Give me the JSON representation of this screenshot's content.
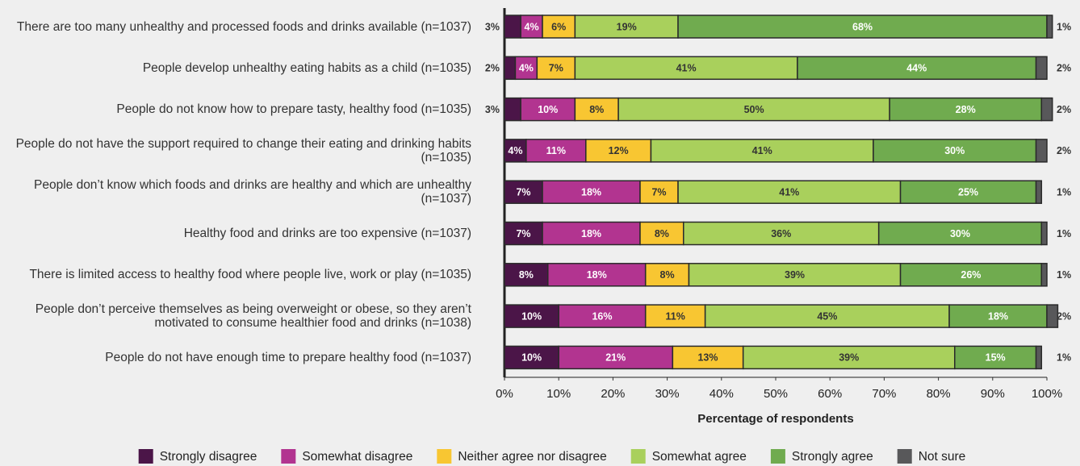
{
  "chart_data": {
    "type": "stacked-bar-horizontal",
    "x_label": "Percentage of respondents",
    "categories": [
      "There are too many unhealthy and processed foods and drinks available (n=1037)",
      "People develop unhealthy eating habits as a child (n=1035)",
      "People do not know how to prepare tasty, healthy food (n=1035)",
      "People do not have the support required to change their eating and drinking habits (n=1035)",
      "People don’t know which foods and drinks are healthy and which are unhealthy (n=1037)",
      "Healthy food and drinks are too expensive (n=1037)",
      "There is limited access to healthy food where people live, work or play (n=1035)",
      "People don’t perceive themselves as being overweight or obese, so they aren’t motivated to consume healthier food and drinks (n=1038)",
      "People do not have enough time to prepare healthy food (n=1037)"
    ],
    "series": [
      {
        "name": "Strongly disagree",
        "color": "#4b1548",
        "values": [
          3,
          2,
          3,
          4,
          7,
          7,
          8,
          10,
          10
        ],
        "value_labels": [
          "3%",
          "2%",
          "3%",
          "4%",
          "7%",
          "7%",
          "8%",
          "10%",
          "10%"
        ]
      },
      {
        "name": "Somewhat disagree",
        "color": "#b23490",
        "values": [
          4,
          4,
          10,
          11,
          18,
          18,
          18,
          16,
          21
        ],
        "value_labels": [
          "4%",
          "4%",
          "10%",
          "11%",
          "18%",
          "18%",
          "18%",
          "16%",
          "21%"
        ]
      },
      {
        "name": "Neither agree nor disagree",
        "color": "#f8c632",
        "values": [
          6,
          7,
          8,
          12,
          7,
          8,
          8,
          11,
          13
        ],
        "value_labels": [
          "6%",
          "7%",
          "8%",
          "12%",
          "7%",
          "8%",
          "8%",
          "11%",
          "13%"
        ]
      },
      {
        "name": "Somewhat agree",
        "color": "#a9d05c",
        "values": [
          19,
          41,
          50,
          41,
          41,
          36,
          39,
          45,
          39
        ],
        "value_labels": [
          "19%",
          "41%",
          "50%",
          "41%",
          "41%",
          "36%",
          "39%",
          "45%",
          "39%"
        ]
      },
      {
        "name": "Strongly agree",
        "color": "#70ab4f",
        "values": [
          68,
          44,
          28,
          30,
          25,
          30,
          26,
          18,
          15
        ],
        "value_labels": [
          "68%",
          "44%",
          "28%",
          "30%",
          "25%",
          "30%",
          "26%",
          "18%",
          "15%"
        ]
      },
      {
        "name": "Not sure",
        "color": "#58585a",
        "values": [
          1,
          2,
          2,
          2,
          1,
          1,
          1,
          2,
          1
        ],
        "value_labels": [
          "1%",
          "2%",
          "2%",
          "2%",
          "1%",
          "1%",
          "1%",
          "2%",
          "1%"
        ]
      }
    ],
    "xlim": [
      0,
      100
    ],
    "xticks": [
      {
        "value": 0,
        "label": "0%"
      },
      {
        "value": 10,
        "label": "10%"
      },
      {
        "value": 20,
        "label": "20%"
      },
      {
        "value": 30,
        "label": "30%"
      },
      {
        "value": 40,
        "label": "40%"
      },
      {
        "value": 50,
        "label": "50%"
      },
      {
        "value": 60,
        "label": "60%"
      },
      {
        "value": 70,
        "label": "70%"
      },
      {
        "value": 80,
        "label": "80%"
      },
      {
        "value": 90,
        "label": "90%"
      },
      {
        "value": 100,
        "label": "100%"
      }
    ],
    "legend": "bottom"
  }
}
